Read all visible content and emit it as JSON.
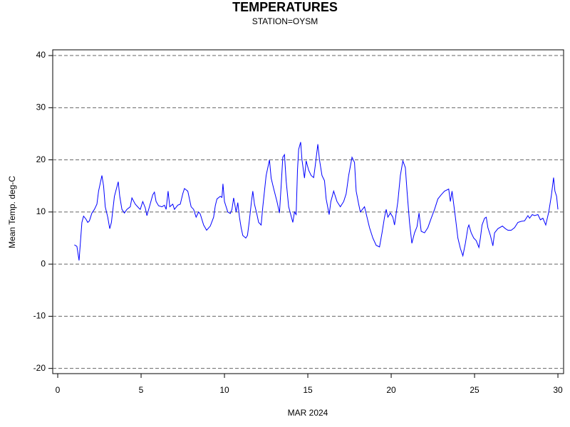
{
  "chart_data": {
    "type": "line",
    "title": "TEMPERATURES",
    "subtitle": "STATION=OYSM",
    "x_label": "MAR 2024",
    "y_label": "Mean Temp. deg-C",
    "xlim": [
      -0.3,
      30.34
    ],
    "ylim": [
      -21.0,
      41.1
    ],
    "xticks": [
      0,
      5,
      10,
      15,
      20,
      25,
      30
    ],
    "yticks": [
      -20,
      -10,
      0,
      10,
      20,
      30,
      40
    ],
    "grid": true,
    "series": [
      {
        "color": "#0000ff",
        "x": [
          1.0,
          1.15,
          1.28,
          1.38,
          1.45,
          1.55,
          1.7,
          1.8,
          1.9,
          2.05,
          2.2,
          2.35,
          2.45,
          2.65,
          2.75,
          2.85,
          3.0,
          3.12,
          3.22,
          3.4,
          3.63,
          3.72,
          3.85,
          4.0,
          4.15,
          4.35,
          4.45,
          4.65,
          4.85,
          4.95,
          5.1,
          5.25,
          5.35,
          5.5,
          5.7,
          5.8,
          5.9,
          6.05,
          6.25,
          6.4,
          6.5,
          6.62,
          6.72,
          6.9,
          7.0,
          7.2,
          7.35,
          7.5,
          7.6,
          7.8,
          8.0,
          8.15,
          8.3,
          8.45,
          8.55,
          8.75,
          8.93,
          9.15,
          9.35,
          9.45,
          9.55,
          9.75,
          9.85,
          9.91,
          10.0,
          10.2,
          10.35,
          10.45,
          10.55,
          10.7,
          10.8,
          10.9,
          11.0,
          11.1,
          11.28,
          11.38,
          11.48,
          11.62,
          11.7,
          11.8,
          11.95,
          12.05,
          12.2,
          12.3,
          12.5,
          12.7,
          12.8,
          12.95,
          13.15,
          13.3,
          13.4,
          13.5,
          13.6,
          13.7,
          13.85,
          14.1,
          14.2,
          14.3,
          14.38,
          14.45,
          14.57,
          14.65,
          14.8,
          14.9,
          15.05,
          15.2,
          15.35,
          15.45,
          15.6,
          15.7,
          15.85,
          16.0,
          16.1,
          16.28,
          16.38,
          16.55,
          16.75,
          16.95,
          17.15,
          17.3,
          17.45,
          17.65,
          17.8,
          17.9,
          18.05,
          18.15,
          18.4,
          18.55,
          18.7,
          18.9,
          19.1,
          19.3,
          19.45,
          19.6,
          19.7,
          19.8,
          19.95,
          20.1,
          20.2,
          20.4,
          20.55,
          20.7,
          20.85,
          20.95,
          21.1,
          21.24,
          21.4,
          21.55,
          21.67,
          21.8,
          22.0,
          22.2,
          22.4,
          22.6,
          22.8,
          23.0,
          23.2,
          23.45,
          23.55,
          23.65,
          23.85,
          24.0,
          24.15,
          24.3,
          24.45,
          24.6,
          24.66,
          24.8,
          24.95,
          25.1,
          25.26,
          25.35,
          25.45,
          25.6,
          25.7,
          25.8,
          25.95,
          26.1,
          26.2,
          26.4,
          26.67,
          26.85,
          27.0,
          27.2,
          27.4,
          27.6,
          27.8,
          28.0,
          28.2,
          28.3,
          28.46,
          28.6,
          28.8,
          28.95,
          29.1,
          29.27,
          29.45,
          29.6,
          29.74,
          29.82,
          29.92,
          30.0
        ],
        "values": [
          3.7,
          3.4,
          0.7,
          5,
          8,
          9.2,
          8.6,
          8,
          8.3,
          9.8,
          10.5,
          11.5,
          14,
          17,
          15,
          11,
          9,
          6.8,
          8,
          13,
          15.8,
          13,
          10.5,
          9.8,
          10.5,
          11,
          12.7,
          11.5,
          10.8,
          10.5,
          12,
          10.8,
          9.3,
          11,
          13.3,
          13.8,
          12,
          11.2,
          11,
          11.3,
          10.5,
          14,
          11,
          11.5,
          10.5,
          11.3,
          11.5,
          13.5,
          14.5,
          14,
          11,
          10.5,
          9,
          10,
          9.6,
          7.5,
          6.5,
          7.3,
          9,
          11.2,
          12.5,
          13,
          12.8,
          15.4,
          12,
          10,
          9.7,
          10.5,
          12.7,
          10,
          11.8,
          9,
          7,
          5.5,
          5,
          5.5,
          8,
          12,
          14,
          11.5,
          9.5,
          8,
          7.5,
          11,
          17,
          20,
          16.5,
          14.5,
          12,
          9.8,
          15,
          20.5,
          21,
          16,
          11,
          8,
          10,
          9.5,
          18,
          22,
          23.4,
          20,
          16.5,
          19.8,
          18,
          17,
          16.6,
          19,
          23,
          20,
          17,
          16,
          12.5,
          9.5,
          12,
          14,
          12,
          11,
          12,
          13.5,
          17,
          20.5,
          19.5,
          14,
          11.5,
          10,
          11,
          9,
          7,
          5,
          3.6,
          3.3,
          6,
          9,
          10.5,
          9,
          9.8,
          9,
          7.5,
          12,
          17,
          19.8,
          18.5,
          14,
          8,
          4,
          6,
          7.2,
          9.8,
          6.3,
          6,
          7,
          8.8,
          10.5,
          12.5,
          13.3,
          14,
          14.4,
          12,
          14,
          9,
          5,
          3,
          1.6,
          4,
          7,
          7.5,
          6,
          5,
          4.5,
          3.2,
          5,
          7.5,
          8.8,
          9,
          7,
          5.5,
          3.5,
          6,
          6.8,
          7.3,
          6.8,
          6.5,
          6.5,
          7,
          8,
          8.2,
          8.3,
          9.3,
          8.8,
          9.5,
          9.3,
          9.5,
          8.5,
          8.8,
          7.5,
          10,
          13,
          16.6,
          14,
          13,
          10.5
        ]
      }
    ]
  }
}
